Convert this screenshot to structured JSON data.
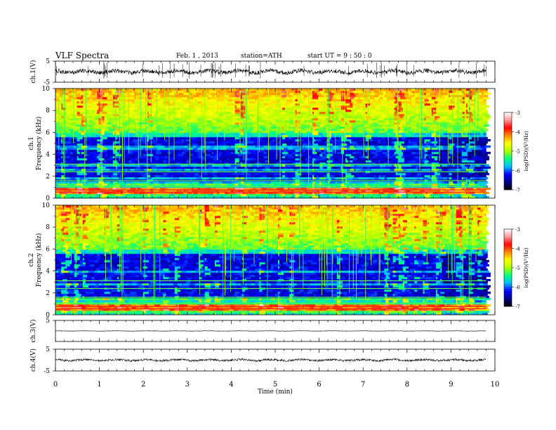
{
  "header": {
    "title": "VLF  Spectra",
    "date": "Feb. 1  , 2013",
    "station": "station=ATH",
    "start": "start  UT =   9 : 50 : 0"
  },
  "chart_data": [
    {
      "type": "line",
      "panel": "ch1-waveform",
      "ylabel": "ch.1(V)",
      "ylim": [
        -5,
        5
      ],
      "yticks": [
        "5",
        "-5"
      ],
      "xlim": [
        0,
        10
      ],
      "data_end_min": 9.8
    },
    {
      "type": "heatmap",
      "panel": "ch1-spectrogram",
      "ylabel_channel": "ch.1",
      "ylabel": "Frequency  (kHz)",
      "ylim": [
        0,
        10
      ],
      "yticks": [
        "0",
        "2",
        "4",
        "6",
        "8",
        "10"
      ],
      "xlim": [
        0,
        10
      ],
      "data_end_min": 9.8,
      "colorbar": {
        "label": "log(PSD)(V²/Hz)",
        "range": [
          -7,
          -3
        ],
        "ticks": [
          "-3",
          "-4",
          "-5",
          "-6",
          "-7"
        ]
      }
    },
    {
      "type": "heatmap",
      "panel": "ch2-spectrogram",
      "ylabel_channel": "ch.2",
      "ylabel": "Frequency  (kHz)",
      "ylim": [
        0,
        10
      ],
      "yticks": [
        "0",
        "2",
        "4",
        "6",
        "8",
        "10"
      ],
      "xlim": [
        0,
        10
      ],
      "data_end_min": 9.8,
      "colorbar": {
        "label": "log(PSD)(V²/Hz)",
        "range": [
          -7,
          -3
        ],
        "ticks": [
          "-3",
          "-4",
          "-5",
          "-6",
          "-7"
        ]
      }
    },
    {
      "type": "line",
      "panel": "ch3-waveform",
      "ylabel": "ch.3(V)",
      "ylim": [
        -5,
        5
      ],
      "yticks": [
        "5"
      ],
      "xlim": [
        0,
        10
      ]
    },
    {
      "type": "line",
      "panel": "ch4-waveform",
      "ylabel": "ch.4(V)",
      "ylim": [
        -5,
        5
      ],
      "yticks": [
        "5",
        "-5"
      ],
      "xlim": [
        0,
        10
      ],
      "xlabel": "Time  (min)",
      "xticks": [
        "0",
        "1",
        "2",
        "3",
        "4",
        "5",
        "6",
        "7",
        "8",
        "9",
        "10"
      ]
    }
  ],
  "colors": {
    "frame": "#000000",
    "waveform": "#000000",
    "colormap": [
      "#000000",
      "#00008b",
      "#0000ff",
      "#00bfff",
      "#00ff7f",
      "#aaff00",
      "#ffff00",
      "#ff8c00",
      "#ff0000",
      "#ff9999",
      "#ffffff"
    ]
  }
}
